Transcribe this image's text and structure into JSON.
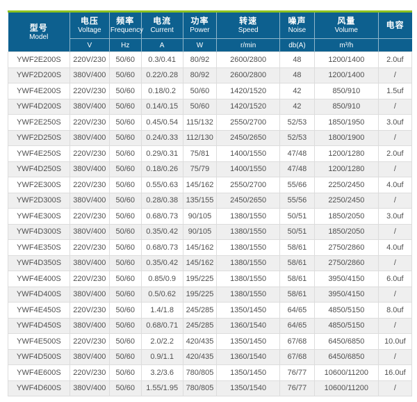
{
  "colors": {
    "accent_green": "#8dc21f",
    "header_bg": "#0d608f",
    "header_text": "#ffffff",
    "row_alt_bg": "#efefef",
    "body_text": "#4f4f4f",
    "border": "#dcdcdc"
  },
  "table": {
    "columns": [
      {
        "cn": "型号",
        "en": "Model",
        "unit": ""
      },
      {
        "cn": "电压",
        "en": "Voltage",
        "unit": "V"
      },
      {
        "cn": "频率",
        "en": "Frequency",
        "unit": "Hz"
      },
      {
        "cn": "电流",
        "en": "Current",
        "unit": "A"
      },
      {
        "cn": "功率",
        "en": "Power",
        "unit": "W"
      },
      {
        "cn": "转速",
        "en": "Speed",
        "unit": "r/min"
      },
      {
        "cn": "噪声",
        "en": "Noise",
        "unit": "db(A)"
      },
      {
        "cn": "风量",
        "en": "Volume",
        "unit": "m³/h"
      },
      {
        "cn": "电容",
        "en": "",
        "unit": ""
      }
    ],
    "rows": [
      [
        "YWF2E200S",
        "220V/230",
        "50/60",
        "0.3/0.41",
        "80/92",
        "2600/2800",
        "48",
        "1200/1400",
        "2.0uf"
      ],
      [
        "YWF2D200S",
        "380V/400",
        "50/60",
        "0.22/0.28",
        "80/92",
        "2600/2800",
        "48",
        "1200/1400",
        "/"
      ],
      [
        "YWF4E200S",
        "220V/230",
        "50/60",
        "0.18/0.2",
        "50/60",
        "1420/1520",
        "42",
        "850/910",
        "1.5uf"
      ],
      [
        "YWF4D200S",
        "380V/400",
        "50/60",
        "0.14/0.15",
        "50/60",
        "1420/1520",
        "42",
        "850/910",
        "/"
      ],
      [
        "YWF2E250S",
        "220V/230",
        "50/60",
        "0.45/0.54",
        "115/132",
        "2550/2700",
        "52/53",
        "1850/1950",
        "3.0uf"
      ],
      [
        "YWF2D250S",
        "380V/400",
        "50/60",
        "0.24/0.33",
        "112/130",
        "2450/2650",
        "52/53",
        "1800/1900",
        "/"
      ],
      [
        "YWF4E250S",
        "220V/230",
        "50/60",
        "0.29/0.31",
        "75/81",
        "1400/1550",
        "47/48",
        "1200/1280",
        "2.0uf"
      ],
      [
        "YWF4D250S",
        "380V/400",
        "50/60",
        "0.18/0.26",
        "75/79",
        "1400/1550",
        "47/48",
        "1200/1280",
        "/"
      ],
      [
        "YWF2E300S",
        "220V/230",
        "50/60",
        "0.55/0.63",
        "145/162",
        "2550/2700",
        "55/66",
        "2250/2450",
        "4.0uf"
      ],
      [
        "YWF2D300S",
        "380V/400",
        "50/60",
        "0.28/0.38",
        "135/155",
        "2450/2650",
        "55/56",
        "2250/2450",
        "/"
      ],
      [
        "YWF4E300S",
        "220V/230",
        "50/60",
        "0.68/0.73",
        "90/105",
        "1380/1550",
        "50/51",
        "1850/2050",
        "3.0uf"
      ],
      [
        "YWF4D300S",
        "380V/400",
        "50/60",
        "0.35/0.42",
        "90/105",
        "1380/1550",
        "50/51",
        "1850/2050",
        "/"
      ],
      [
        "YWF4E350S",
        "220V/230",
        "50/60",
        "0.68/0.73",
        "145/162",
        "1380/1550",
        "58/61",
        "2750/2860",
        "4.0uf"
      ],
      [
        "YWF4D350S",
        "380V/400",
        "50/60",
        "0.35/0.42",
        "145/162",
        "1380/1550",
        "58/61",
        "2750/2860",
        "/"
      ],
      [
        "YWF4E400S",
        "220V/230",
        "50/60",
        "0.85/0.9",
        "195/225",
        "1380/1550",
        "58/61",
        "3950/4150",
        "6.0uf"
      ],
      [
        "YWF4D400S",
        "380V/400",
        "50/60",
        "0.5/0.62",
        "195/225",
        "1380/1550",
        "58/61",
        "3950/4150",
        "/"
      ],
      [
        "YWF4E450S",
        "220V/230",
        "50/60",
        "1.4/1.8",
        "245/285",
        "1350/1450",
        "64/65",
        "4850/5150",
        "8.0uf"
      ],
      [
        "YWF4D450S",
        "380V/400",
        "50/60",
        "0.68/0.71",
        "245/285",
        "1360/1540",
        "64/65",
        "4850/5150",
        "/"
      ],
      [
        "YWF4E500S",
        "220V/230",
        "50/60",
        "2.0/2.2",
        "420/435",
        "1350/1450",
        "67/68",
        "6450/6850",
        "10.0uf"
      ],
      [
        "YWF4D500S",
        "380V/400",
        "50/60",
        "0.9/1.1",
        "420/435",
        "1360/1540",
        "67/68",
        "6450/6850",
        "/"
      ],
      [
        "YWF4E600S",
        "220V/230",
        "50/60",
        "3.2/3.6",
        "780/805",
        "1350/1450",
        "76/77",
        "10600/11200",
        "16.0uf"
      ],
      [
        "YWF4D600S",
        "380V/400",
        "50/60",
        "1.55/1.95",
        "780/805",
        "1350/1540",
        "76/77",
        "10600/11200",
        "/"
      ]
    ]
  }
}
